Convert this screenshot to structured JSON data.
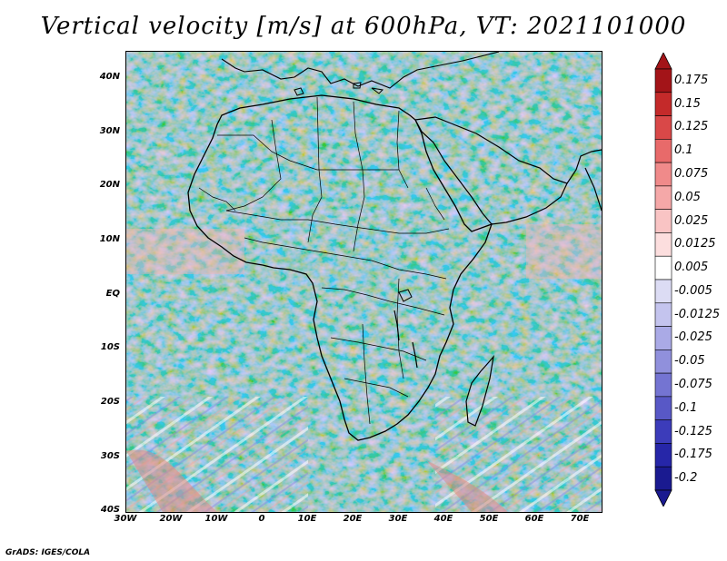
{
  "title": "Vertical velocity [m/s] at 600hPa, VT: 2021101000",
  "map": {
    "lat_labels": [
      "40N",
      "30N",
      "20N",
      "10N",
      "EQ",
      "10S",
      "20S",
      "30S",
      "40S"
    ],
    "lon_labels": [
      "30W",
      "20W",
      "10W",
      "0",
      "10E",
      "20E",
      "30E",
      "40E",
      "50E",
      "60E",
      "70E"
    ],
    "lat_range": [
      -40,
      45
    ],
    "lon_range": [
      -30,
      75
    ]
  },
  "colorbar": {
    "labels": [
      "0.175",
      "0.15",
      "0.125",
      "0.1",
      "0.075",
      "0.05",
      "0.025",
      "0.0125",
      "0.005",
      "-0.005",
      "-0.0125",
      "-0.025",
      "-0.05",
      "-0.075",
      "-0.1",
      "-0.125",
      "-0.175",
      "-0.2"
    ],
    "colors": [
      "#a31418",
      "#c42a2a",
      "#d94848",
      "#e86a6a",
      "#f08a8a",
      "#f5a8a8",
      "#f9c4c4",
      "#fcdede",
      "#ffffff",
      "#dcdcf4",
      "#c4c4ee",
      "#aaaae6",
      "#9090dc",
      "#7474d2",
      "#5858c6",
      "#3c3cba",
      "#2626a8",
      "#1a1a90"
    ]
  },
  "credit": "GrADS: IGES/COLA"
}
